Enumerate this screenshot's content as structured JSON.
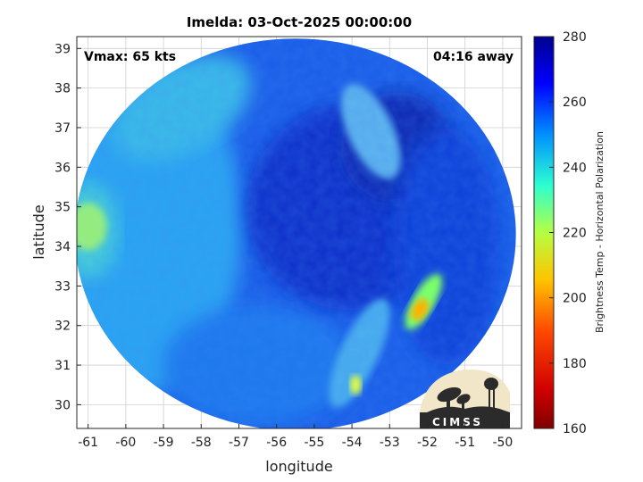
{
  "chart_data": {
    "type": "heatmap",
    "title": "Imelda: 03-Oct-2025 00:00:00",
    "xlabel": "longitude",
    "ylabel": "latitude",
    "xlim": [
      -61.3,
      -49.5
    ],
    "ylim": [
      29.4,
      39.3
    ],
    "x_ticks": [
      "-61",
      "-60",
      "-59",
      "-58",
      "-57",
      "-56",
      "-55",
      "-54",
      "-53",
      "-52",
      "-51",
      "-50"
    ],
    "y_ticks": [
      "30",
      "31",
      "32",
      "33",
      "34",
      "35",
      "36",
      "37",
      "38",
      "39"
    ],
    "grid": true,
    "annotations": {
      "vmax": "Vmax: 65 kts",
      "away": "04:16 away"
    },
    "colorbar": {
      "label": "Brightness Temp - Horizontal Polarization",
      "range": [
        160,
        280
      ],
      "ticks": [
        "160",
        "180",
        "200",
        "220",
        "240",
        "260",
        "280"
      ],
      "colormap": "jet"
    },
    "swath": {
      "center_lon": -55.5,
      "center_lat": 34.3,
      "approx_range_deg_lon": [
        -61.3,
        -49.6
      ],
      "approx_range_deg_lat": [
        29.4,
        39.3
      ]
    },
    "features": [
      {
        "desc": "cold core (~270 K) over central/north-east swath",
        "lon": -53.5,
        "lat": 35.5,
        "value": 268
      },
      {
        "desc": "warmer western edge (~225-235 K)",
        "lon": -61.0,
        "lat": 34.5,
        "value": 228
      },
      {
        "desc": "convective band (~200-215 K)",
        "lon": -52.2,
        "lat": 32.4,
        "value": 205
      },
      {
        "desc": "convective spot",
        "lon": -53.9,
        "lat": 30.6,
        "value": 225
      }
    ]
  },
  "logo": {
    "text": "CIMSS"
  },
  "colors": {
    "background": "#ffffff",
    "grid": "#d9d9d9",
    "logo_bg": "#f1e7c8",
    "logo_dark": "#2b2b2b"
  }
}
